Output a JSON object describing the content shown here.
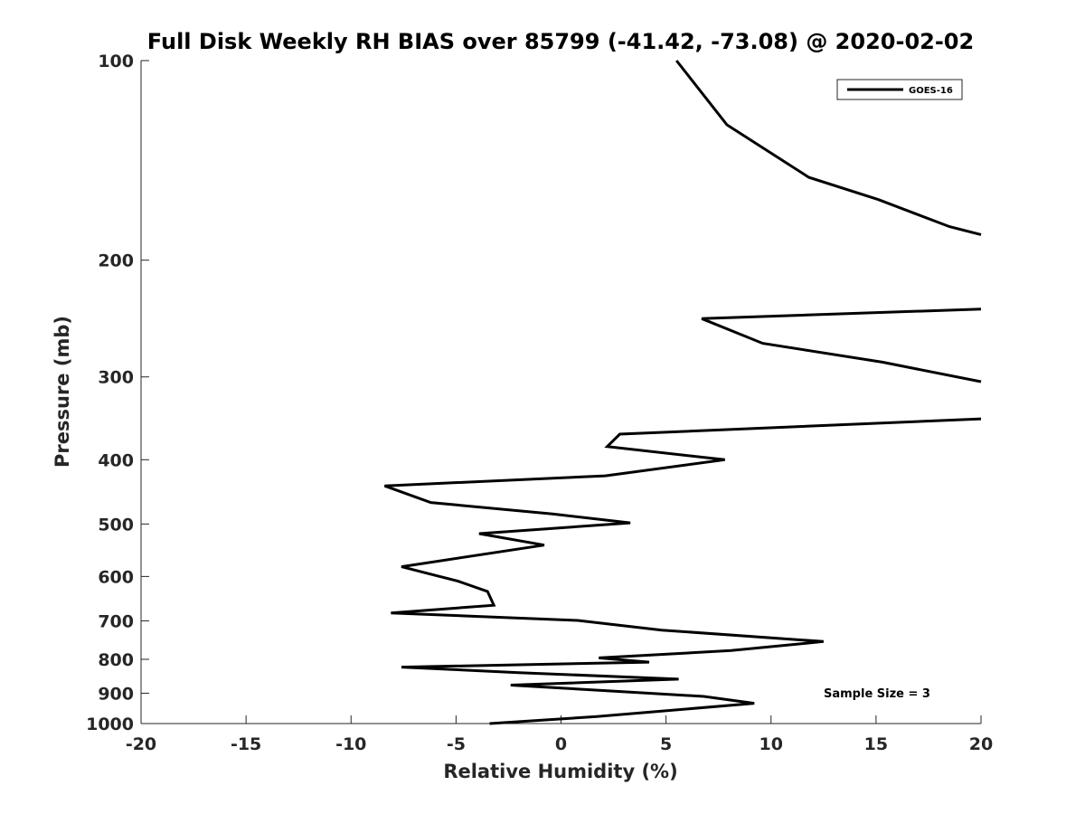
{
  "chart_data": {
    "type": "line",
    "title": "Full Disk Weekly RH BIAS over 85799 (-41.42, -73.08) @ 2020-02-02",
    "xlabel": "Relative Humidity (%)",
    "ylabel": "Pressure (mb)",
    "xlim": [
      -20,
      20
    ],
    "ylim": [
      100,
      1000
    ],
    "y_scale": "log",
    "y_reversed": true,
    "grid": false,
    "legend_position": "top-right",
    "x_ticks": [
      -20,
      -15,
      -10,
      -5,
      0,
      5,
      10,
      15,
      20
    ],
    "x_tick_labels": [
      "-20",
      "-15",
      "-10",
      "-5",
      "0",
      "5",
      "10",
      "15",
      "20"
    ],
    "y_ticks": [
      100,
      200,
      300,
      400,
      500,
      600,
      700,
      800,
      900,
      1000
    ],
    "y_tick_labels": [
      "100",
      "200",
      "300",
      "400",
      "500",
      "600",
      "700",
      "800",
      "900",
      "1000"
    ],
    "annotation": "Sample Size = 3",
    "series": [
      {
        "name": "GOES-16",
        "color": "#000000",
        "segments": [
          {
            "x": [
              5.5,
              7.9,
              11.8,
              15.1,
              18.5,
              20.0
            ],
            "y": [
              100,
              125,
              150,
              162,
              178,
              183
            ]
          },
          {
            "x": [
              20.0,
              6.7,
              9.6,
              15.3,
              20.0
            ],
            "y": [
              237,
              245,
              267,
              285,
              305
            ]
          },
          {
            "x": [
              20.0,
              2.8,
              2.2,
              7.8,
              2.1,
              -8.4,
              -6.2,
              -0.4,
              3.3,
              -3.9,
              -0.8,
              -7.6,
              -4.9,
              -3.5,
              -3.2,
              -8.1,
              0.8,
              4.8,
              12.5,
              8.1,
              1.8,
              4.2,
              -7.6,
              -2.0,
              5.6,
              -2.4,
              6.8,
              9.2,
              1.7,
              -3.4
            ],
            "y": [
              347,
              366,
              382,
              400,
              423,
              438,
              464,
              483,
              498,
              517,
              538,
              580,
              610,
              632,
              663,
              681,
              699,
              723,
              752,
              776,
              796,
              808,
              822,
              838,
              857,
              875,
              910,
              932,
              976,
              1000
            ]
          }
        ]
      }
    ]
  }
}
